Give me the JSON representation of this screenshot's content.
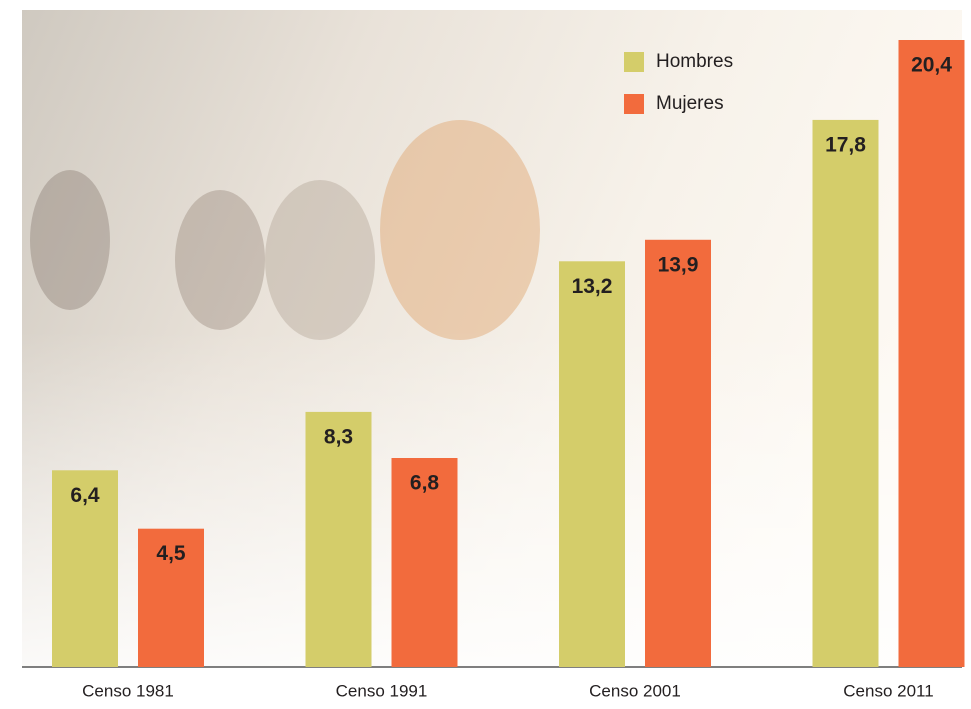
{
  "chart_data": {
    "type": "bar",
    "categories": [
      "Censo 1981",
      "Censo 1991",
      "Censo 2001",
      "Censo 2011"
    ],
    "series": [
      {
        "name": "Hombres",
        "color": "#d4cd6a",
        "values": [
          6.4,
          8.3,
          13.2,
          17.8
        ],
        "value_labels": [
          "6,4",
          "8,3",
          "13,2",
          "17,8"
        ]
      },
      {
        "name": "Mujeres",
        "color": "#f26b3d",
        "values": [
          4.5,
          6.8,
          13.9,
          20.4
        ],
        "value_labels": [
          "4,5",
          "6,8",
          "13,9",
          "20,4"
        ]
      }
    ],
    "legend": "top-right"
  }
}
